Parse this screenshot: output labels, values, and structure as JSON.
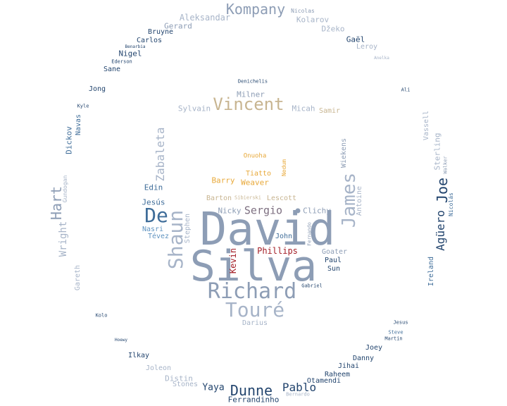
{
  "palette": {
    "steel": "#8d9db5",
    "steel_light": "#a7b4c8",
    "navy": "#23456e",
    "blue": "#3f6d99",
    "sky": "#5f93c0",
    "tan": "#c8b591",
    "gold": "#e8a93a",
    "crimson": "#a31d25",
    "grey": "#9aa0a8",
    "mauve": "#7d6f80"
  },
  "words": [
    {
      "text": "David",
      "color": "#8d9db5"
    },
    {
      "text": "Silva",
      "color": "#8d9db5"
    },
    {
      "text": "Richard",
      "color": "#8d9db5"
    },
    {
      "text": "Touré",
      "color": "#a7b4c8"
    },
    {
      "text": "Vincent",
      "color": "#c8b591"
    },
    {
      "text": "Kompany",
      "color": "#8d9db5"
    },
    {
      "text": "De",
      "color": "#3f6d99"
    },
    {
      "text": "Shaun",
      "color": "#a7b4c8"
    },
    {
      "text": "James",
      "color": "#a7b4c8"
    },
    {
      "text": "Joe",
      "color": "#23456e"
    },
    {
      "text": "Agüero",
      "color": "#23456e"
    },
    {
      "text": "Hart",
      "color": "#8d9db5"
    },
    {
      "text": "Dunne",
      "color": "#23456e"
    },
    {
      "text": "Pablo",
      "color": "#23456e"
    },
    {
      "text": "Sergio",
      "color": "#7d6f80"
    },
    {
      "text": "Zabaleta",
      "color": "#a7b4c8"
    },
    {
      "text": "Wright",
      "color": "#a7b4c8"
    },
    {
      "text": "Yaya",
      "color": "#23456e"
    },
    {
      "text": "Phillips",
      "color": "#a31d25"
    },
    {
      "text": "Kevin",
      "color": "#a31d25"
    },
    {
      "text": "Aleksandar",
      "color": "#a7b4c8"
    },
    {
      "text": "Kolarov",
      "color": "#a7b4c8"
    },
    {
      "text": "Gerard",
      "color": "#8d9db5"
    },
    {
      "text": "Bruyne",
      "color": "#23456e"
    },
    {
      "text": "Carlos",
      "color": "#23456e"
    },
    {
      "text": "Nigel",
      "color": "#23456e"
    },
    {
      "text": "Sane",
      "color": "#23456e"
    },
    {
      "text": "Jong",
      "color": "#23456e"
    },
    {
      "text": "Dickov",
      "color": "#3f6d99"
    },
    {
      "text": "Navas",
      "color": "#3f6d99"
    },
    {
      "text": "Kyle",
      "color": "#23456e"
    },
    {
      "text": "Benarbia",
      "color": "#23456e"
    },
    {
      "text": "Ederson",
      "color": "#23456e"
    },
    {
      "text": "Nicolas",
      "color": "#8d9db5"
    },
    {
      "text": "Džeko",
      "color": "#a7b4c8"
    },
    {
      "text": "Gaël",
      "color": "#23456e"
    },
    {
      "text": "Leroy",
      "color": "#a7b4c8"
    },
    {
      "text": "Anelka",
      "color": "#a7b4c8"
    },
    {
      "text": "Ali",
      "color": "#23456e"
    },
    {
      "text": "Vassell",
      "color": "#a7b4c8"
    },
    {
      "text": "Sterling",
      "color": "#a7b4c8"
    },
    {
      "text": "Walker",
      "color": "#8d9db5"
    },
    {
      "text": "Nicolás",
      "color": "#3f6d99"
    },
    {
      "text": "Ireland",
      "color": "#3f6d99"
    },
    {
      "text": "Gundogan",
      "color": "#a7b4c8"
    },
    {
      "text": "Gareth",
      "color": "#a7b4c8"
    },
    {
      "text": "Kolo",
      "color": "#23456e"
    },
    {
      "text": "Hoewy",
      "color": "#23456e"
    },
    {
      "text": "Ilkay",
      "color": "#23456e"
    },
    {
      "text": "Joleon",
      "color": "#a7b4c8"
    },
    {
      "text": "Distin",
      "color": "#a7b4c8"
    },
    {
      "text": "Stones",
      "color": "#a7b4c8"
    },
    {
      "text": "Ferrandinho",
      "color": "#23456e"
    },
    {
      "text": "Bernardo",
      "color": "#a7b4c8"
    },
    {
      "text": "Otamendi",
      "color": "#23456e"
    },
    {
      "text": "Raheem",
      "color": "#23456e"
    },
    {
      "text": "Jihai",
      "color": "#23456e"
    },
    {
      "text": "Danny",
      "color": "#23456e"
    },
    {
      "text": "Joey",
      "color": "#23456e"
    },
    {
      "text": "Martin",
      "color": "#23456e"
    },
    {
      "text": "Steve",
      "color": "#3f6d99"
    },
    {
      "text": "Jesus",
      "color": "#23456e"
    },
    {
      "text": "Denichelis",
      "color": "#23456e"
    },
    {
      "text": "Milner",
      "color": "#8d9db5"
    },
    {
      "text": "Sylvain",
      "color": "#a7b4c8"
    },
    {
      "text": "Micah",
      "color": "#a7b4c8"
    },
    {
      "text": "Samir",
      "color": "#c8b591"
    },
    {
      "text": "Onuoha",
      "color": "#e8a93a"
    },
    {
      "text": "Nedum",
      "color": "#e8a93a"
    },
    {
      "text": "Tiatto",
      "color": "#e8a93a"
    },
    {
      "text": "Barry",
      "color": "#e8a93a"
    },
    {
      "text": "Weaver",
      "color": "#e8a93a"
    },
    {
      "text": "Barton",
      "color": "#c8b591"
    },
    {
      "text": "Sibierski",
      "color": "#c8b591"
    },
    {
      "text": "Lescott",
      "color": "#c8b591"
    },
    {
      "text": "Edin",
      "color": "#3f6d99"
    },
    {
      "text": "Jesús",
      "color": "#3f6d99"
    },
    {
      "text": "Nicky",
      "color": "#8d9db5"
    },
    {
      "text": "Clichy",
      "color": "#8d9db5"
    },
    {
      "text": "Wiekens",
      "color": "#8d9db5"
    },
    {
      "text": "Antoine",
      "color": "#a7b4c8"
    },
    {
      "text": "Nasri",
      "color": "#5f93c0"
    },
    {
      "text": "Tévez",
      "color": "#5f93c0"
    },
    {
      "text": "Stephen",
      "color": "#a7b4c8"
    },
    {
      "text": "John",
      "color": "#3f6d99"
    },
    {
      "text": "Fernando",
      "color": "#8d9db5"
    },
    {
      "text": "Goater",
      "color": "#8d9db5"
    },
    {
      "text": "Paul",
      "color": "#23456e"
    },
    {
      "text": "Sun",
      "color": "#23456e"
    },
    {
      "text": "Gabriel",
      "color": "#23456e"
    },
    {
      "text": "Darius",
      "color": "#a7b4c8"
    }
  ]
}
